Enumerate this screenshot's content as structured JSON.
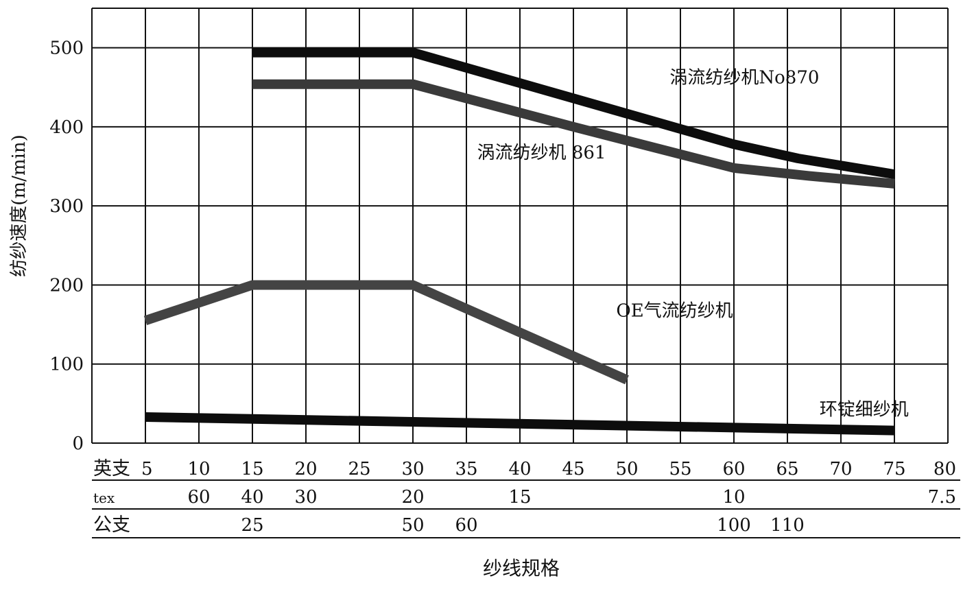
{
  "chart_data": {
    "type": "line",
    "title": "",
    "xlabel": "纱线规格",
    "ylabel": "纺纱速度(m/min)",
    "xlim": [
      0,
      80
    ],
    "ylim": [
      0,
      550
    ],
    "grid": true,
    "y_ticks": [
      0,
      100,
      200,
      300,
      400,
      500
    ],
    "x_scales": [
      {
        "name": "英支",
        "ticks": [
          {
            "label": "5",
            "x": 5
          },
          {
            "label": "10",
            "x": 10
          },
          {
            "label": "15",
            "x": 15
          },
          {
            "label": "20",
            "x": 20
          },
          {
            "label": "25",
            "x": 25
          },
          {
            "label": "30",
            "x": 30
          },
          {
            "label": "35",
            "x": 35
          },
          {
            "label": "40",
            "x": 40
          },
          {
            "label": "45",
            "x": 45
          },
          {
            "label": "50",
            "x": 50
          },
          {
            "label": "55",
            "x": 55
          },
          {
            "label": "60",
            "x": 60
          },
          {
            "label": "65",
            "x": 65
          },
          {
            "label": "70",
            "x": 70
          },
          {
            "label": "75",
            "x": 75
          },
          {
            "label": "80",
            "x": 80
          }
        ]
      },
      {
        "name": "tex",
        "ticks": [
          {
            "label": "60",
            "x": 10
          },
          {
            "label": "40",
            "x": 15
          },
          {
            "label": "30",
            "x": 20
          },
          {
            "label": "20",
            "x": 30
          },
          {
            "label": "15",
            "x": 40
          },
          {
            "label": "10",
            "x": 60
          },
          {
            "label": "7.5",
            "x": 80
          }
        ]
      },
      {
        "name": "公支",
        "ticks": [
          {
            "label": "25",
            "x": 15
          },
          {
            "label": "50",
            "x": 30
          },
          {
            "label": "60",
            "x": 35
          },
          {
            "label": "100",
            "x": 60
          },
          {
            "label": "110",
            "x": 65
          }
        ]
      }
    ],
    "series": [
      {
        "name": "涡流纺纱机No870",
        "color": "#0d0d0d",
        "points": [
          [
            15,
            494
          ],
          [
            30,
            494
          ],
          [
            45,
            436
          ],
          [
            60,
            378
          ],
          [
            66,
            360
          ],
          [
            75,
            340
          ]
        ]
      },
      {
        "name": "涡流纺纱机 861",
        "color": "#3a3a3a",
        "points": [
          [
            15,
            454
          ],
          [
            30,
            454
          ],
          [
            45,
            400
          ],
          [
            60,
            348
          ],
          [
            67,
            338
          ],
          [
            75,
            328
          ]
        ]
      },
      {
        "name": "OE气流纺纱机",
        "color": "#444444",
        "points": [
          [
            5,
            155
          ],
          [
            15,
            200
          ],
          [
            30,
            200
          ],
          [
            40,
            140
          ],
          [
            50,
            80
          ]
        ]
      },
      {
        "name": "环锭细纱机",
        "color": "#0d0d0d",
        "points": [
          [
            5,
            33
          ],
          [
            75,
            16
          ]
        ]
      }
    ],
    "annotations": [
      {
        "text": "涡流纺纱机No870",
        "x": 54,
        "y": 463,
        "series": 0
      },
      {
        "text": "涡流纺纱机 861",
        "x": 36,
        "y": 368,
        "series": 1
      },
      {
        "text": "OE气流纺纱机",
        "x": 49,
        "y": 168,
        "series": 2
      },
      {
        "text": "环锭细纱机",
        "x": 68,
        "y": 43,
        "series": 3
      }
    ]
  }
}
